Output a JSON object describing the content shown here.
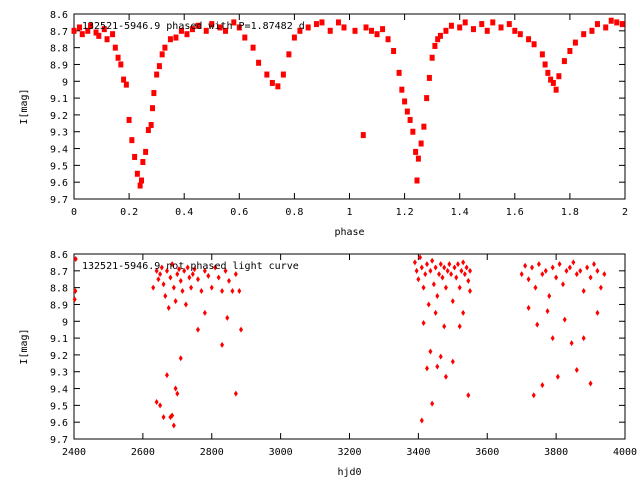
{
  "chart_data": [
    {
      "type": "scatter",
      "title": "132521-5946.9 phased with P=1.87482 d",
      "xlabel": "phase",
      "ylabel": "I[mag]",
      "xlim": [
        0,
        2
      ],
      "ylim": [
        9.7,
        8.6
      ],
      "y_inverted": true,
      "x_ticks": [
        "0",
        "0.2",
        "0.4",
        "0.6",
        "0.8",
        "1",
        "1.2",
        "1.4",
        "1.6",
        "1.8",
        "2"
      ],
      "y_ticks": [
        "8.6",
        "8.7",
        "8.8",
        "8.9",
        "9",
        "9.1",
        "9.2",
        "9.3",
        "9.4",
        "9.5",
        "9.6",
        "9.7"
      ],
      "marker_color": "#ff0000",
      "grid": false,
      "series": [
        {
          "x": [
            0.0,
            0.02,
            0.03,
            0.05,
            0.06,
            0.08,
            0.09,
            0.11,
            0.12,
            0.14,
            0.15,
            0.16,
            0.17,
            0.18,
            0.19,
            0.2,
            0.21,
            0.22,
            0.23,
            0.24,
            0.245,
            0.25,
            0.26,
            0.27,
            0.28,
            0.285,
            0.29,
            0.3,
            0.31,
            0.32,
            0.33,
            0.35,
            0.37,
            0.39,
            0.41,
            0.43,
            0.45,
            0.48,
            0.5,
            0.53,
            0.55,
            0.58,
            0.6,
            0.62,
            0.65,
            0.67,
            0.7,
            0.72,
            0.74,
            0.76,
            0.78,
            0.8,
            0.82,
            0.85,
            0.88,
            0.9,
            0.93,
            0.96,
            0.98,
            1.02,
            1.05,
            1.06,
            1.08,
            1.1,
            1.12,
            1.14,
            1.16,
            1.18,
            1.19,
            1.2,
            1.21,
            1.22,
            1.23,
            1.24,
            1.245,
            1.25,
            1.26,
            1.27,
            1.28,
            1.29,
            1.3,
            1.31,
            1.32,
            1.33,
            1.35,
            1.37,
            1.4,
            1.42,
            1.45,
            1.48,
            1.5,
            1.52,
            1.55,
            1.58,
            1.6,
            1.62,
            1.65,
            1.67,
            1.7,
            1.71,
            1.72,
            1.73,
            1.74,
            1.75,
            1.76,
            1.78,
            1.8,
            1.82,
            1.85,
            1.88,
            1.9,
            1.93,
            1.95,
            1.97,
            1.99
          ],
          "y": [
            8.7,
            8.68,
            8.72,
            8.7,
            8.67,
            8.71,
            8.73,
            8.69,
            8.75,
            8.72,
            8.8,
            8.86,
            8.9,
            8.99,
            9.02,
            9.23,
            9.35,
            9.45,
            9.55,
            9.62,
            9.59,
            9.48,
            9.42,
            9.29,
            9.26,
            9.16,
            9.07,
            8.96,
            8.91,
            8.84,
            8.8,
            8.75,
            8.74,
            8.7,
            8.72,
            8.69,
            8.67,
            8.7,
            8.66,
            8.68,
            8.7,
            8.65,
            8.68,
            8.74,
            8.8,
            8.89,
            8.96,
            9.01,
            9.03,
            8.96,
            8.84,
            8.74,
            8.7,
            8.68,
            8.66,
            8.65,
            8.7,
            8.65,
            8.68,
            8.7,
            9.32,
            8.68,
            8.7,
            8.72,
            8.69,
            8.75,
            8.82,
            8.95,
            9.05,
            9.12,
            9.18,
            9.23,
            9.3,
            9.42,
            9.59,
            9.46,
            9.37,
            9.27,
            9.1,
            8.98,
            8.86,
            8.79,
            8.75,
            8.73,
            8.7,
            8.67,
            8.68,
            8.65,
            8.69,
            8.66,
            8.7,
            8.65,
            8.68,
            8.66,
            8.7,
            8.72,
            8.75,
            8.78,
            8.84,
            8.9,
            8.95,
            8.99,
            9.01,
            9.05,
            8.97,
            8.88,
            8.82,
            8.77,
            8.72,
            8.7,
            8.66,
            8.68,
            8.64,
            8.65,
            8.66
          ]
        }
      ]
    },
    {
      "type": "scatter",
      "title": "132521-5946.9 not phased light curve",
      "xlabel": "hjd0",
      "ylabel": "I[mag]",
      "xlim": [
        2400,
        4000
      ],
      "ylim": [
        9.7,
        8.6
      ],
      "y_inverted": true,
      "x_ticks": [
        "2400",
        "2600",
        "2800",
        "3000",
        "3200",
        "3400",
        "3600",
        "3800",
        "4000"
      ],
      "y_ticks": [
        "8.6",
        "8.7",
        "8.8",
        "8.9",
        "9",
        "9.1",
        "9.2",
        "9.3",
        "9.4",
        "9.5",
        "9.6",
        "9.7"
      ],
      "marker_color": "#ff0000",
      "grid": false,
      "series": [
        {
          "x": [
            2405,
            2402,
            2404,
            2630,
            2640,
            2645,
            2650,
            2655,
            2660,
            2665,
            2670,
            2675,
            2680,
            2685,
            2690,
            2695,
            2700,
            2705,
            2710,
            2715,
            2720,
            2725,
            2730,
            2735,
            2740,
            2745,
            2750,
            2760,
            2770,
            2780,
            2790,
            2800,
            2810,
            2820,
            2830,
            2840,
            2850,
            2860,
            2870,
            2880,
            2690,
            2700,
            2680,
            2660,
            2650,
            2640,
            2670,
            2685,
            2695,
            2710,
            2760,
            2780,
            2830,
            2845,
            2870,
            2885,
            3390,
            3395,
            3400,
            3405,
            3410,
            3415,
            3420,
            3425,
            3430,
            3435,
            3440,
            3445,
            3450,
            3455,
            3460,
            3465,
            3470,
            3475,
            3480,
            3485,
            3490,
            3495,
            3500,
            3505,
            3510,
            3515,
            3520,
            3525,
            3530,
            3535,
            3540,
            3545,
            3550,
            3410,
            3415,
            3425,
            3435,
            3440,
            3450,
            3455,
            3465,
            3475,
            3480,
            3500,
            3520,
            3530,
            3545,
            3550,
            3700,
            3710,
            3720,
            3730,
            3740,
            3750,
            3760,
            3770,
            3780,
            3790,
            3800,
            3810,
            3820,
            3830,
            3840,
            3850,
            3860,
            3870,
            3880,
            3890,
            3900,
            3910,
            3920,
            3930,
            3940,
            3720,
            3735,
            3745,
            3760,
            3775,
            3790,
            3805,
            3825,
            3845,
            3860,
            3880,
            3900,
            3920
          ],
          "y": [
            8.63,
            8.87,
            8.82,
            8.8,
            8.7,
            8.75,
            8.72,
            8.68,
            8.78,
            8.85,
            8.7,
            8.92,
            8.74,
            8.66,
            8.8,
            8.88,
            8.72,
            8.69,
            8.76,
            8.82,
            8.7,
            8.9,
            8.68,
            8.74,
            8.8,
            8.72,
            8.69,
            8.75,
            8.82,
            8.7,
            8.73,
            8.8,
            8.68,
            8.74,
            8.82,
            8.7,
            8.76,
            8.82,
            8.72,
            8.82,
            9.62,
            9.43,
            9.57,
            9.57,
            9.5,
            9.48,
            9.32,
            9.56,
            9.4,
            9.22,
            9.05,
            8.95,
            9.14,
            8.98,
            9.43,
            9.05,
            8.65,
            8.7,
            8.75,
            8.62,
            8.68,
            8.8,
            8.72,
            8.66,
            8.9,
            8.7,
            8.64,
            8.78,
            8.68,
            8.85,
            8.72,
            8.66,
            8.74,
            8.68,
            8.8,
            8.7,
            8.66,
            8.72,
            8.88,
            8.68,
            8.74,
            8.66,
            8.8,
            8.7,
            8.65,
            8.72,
            8.68,
            8.76,
            8.7,
            9.59,
            9.01,
            9.28,
            9.18,
            9.49,
            8.95,
            9.27,
            9.21,
            9.03,
            9.33,
            9.24,
            9.03,
            8.95,
            9.44,
            8.82,
            8.72,
            8.67,
            8.75,
            8.68,
            8.8,
            8.66,
            8.72,
            8.7,
            8.85,
            8.68,
            8.74,
            8.66,
            8.78,
            8.7,
            8.68,
            8.65,
            8.72,
            8.7,
            8.82,
            8.68,
            8.74,
            8.66,
            8.7,
            8.8,
            8.72,
            8.92,
            9.44,
            9.02,
            9.38,
            8.94,
            9.1,
            9.33,
            8.99,
            9.13,
            9.29,
            9.1,
            9.37,
            8.95
          ]
        }
      ]
    }
  ]
}
